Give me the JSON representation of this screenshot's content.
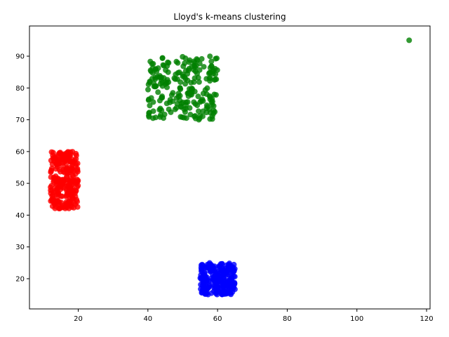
{
  "chart_data": {
    "type": "scatter",
    "title": "Lloyd's k-means clustering",
    "xlabel": "",
    "ylabel": "",
    "xlim": [
      6,
      121
    ],
    "ylim": [
      10.5,
      99.5
    ],
    "xticks": [
      20,
      40,
      60,
      80,
      100,
      120
    ],
    "yticks": [
      20,
      30,
      40,
      50,
      60,
      70,
      80,
      90
    ],
    "grid": false,
    "legend": "none",
    "series": [
      {
        "color": "#ff0000",
        "cluster": {
          "x_range": [
            12,
            20
          ],
          "y_range": [
            42,
            60
          ],
          "count": 260
        },
        "points": []
      },
      {
        "color": "#008000",
        "cluster": {
          "x_range": [
            40,
            60
          ],
          "y_range": [
            70,
            90
          ],
          "count": 230
        },
        "points": [
          [
            115,
            95
          ]
        ]
      },
      {
        "color": "#0000ff",
        "cluster": {
          "x_range": [
            55,
            65
          ],
          "y_range": [
            15,
            25
          ],
          "count": 240
        },
        "points": []
      }
    ]
  }
}
